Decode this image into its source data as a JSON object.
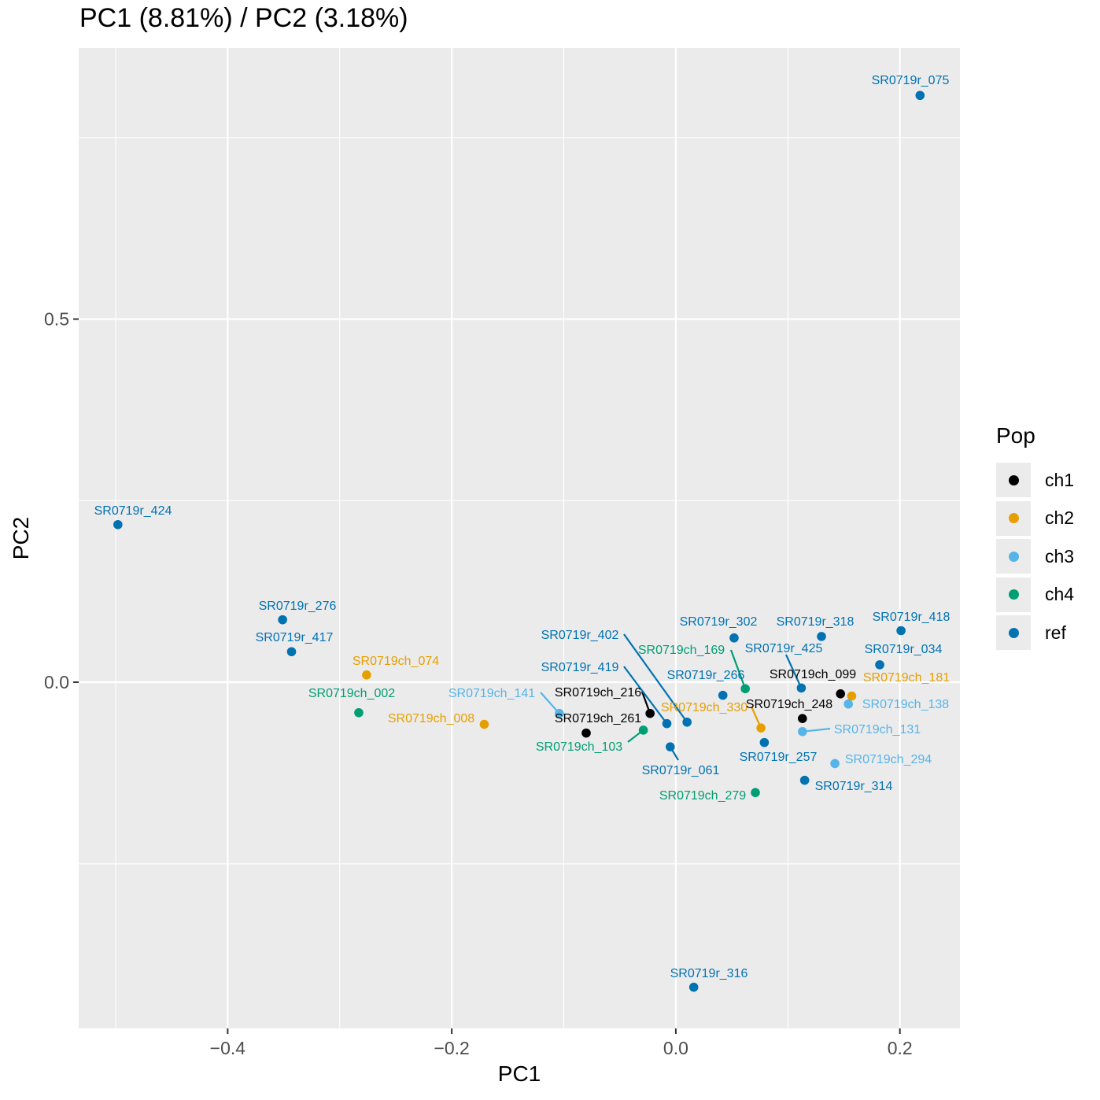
{
  "chart_data": {
    "type": "scatter",
    "title": "PC1 (8.81%) / PC2 (3.18%)",
    "xlabel": "PC1",
    "ylabel": "PC2",
    "xlim": [
      -0.533,
      0.2536
    ],
    "ylim": [
      -0.4767,
      0.8733
    ],
    "xticks": [
      -0.4,
      -0.2,
      0.0,
      0.2
    ],
    "xtick_labels": [
      "−0.4",
      "−0.2",
      "0.0",
      "0.2"
    ],
    "yticks": [
      0.0,
      0.5
    ],
    "ytick_labels": [
      "0.0",
      "0.5"
    ],
    "grid": true,
    "legend": {
      "title": "Pop",
      "position": "right",
      "entries": [
        {
          "name": "ch1",
          "color": "#000000"
        },
        {
          "name": "ch2",
          "color": "#E69F00"
        },
        {
          "name": "ch3",
          "color": "#56B4E9"
        },
        {
          "name": "ch4",
          "color": "#009E73"
        },
        {
          "name": "ref",
          "color": "#0072B2"
        }
      ]
    },
    "points": [
      {
        "label": "SR0719r_075",
        "pop": "ref",
        "x": 0.218,
        "y": 0.808
      },
      {
        "label": "SR0719r_424",
        "pop": "ref",
        "x": -0.498,
        "y": 0.217
      },
      {
        "label": "SR0719r_276",
        "pop": "ref",
        "x": -0.351,
        "y": 0.086
      },
      {
        "label": "SR0719r_417",
        "pop": "ref",
        "x": -0.343,
        "y": 0.042
      },
      {
        "label": "SR0719ch_074",
        "pop": "ch2",
        "x": -0.276,
        "y": 0.01
      },
      {
        "label": "SR0719ch_002",
        "pop": "ch4",
        "x": -0.283,
        "y": -0.042
      },
      {
        "label": "SR0719ch_008",
        "pop": "ch2",
        "x": -0.171,
        "y": -0.058
      },
      {
        "label": "SR0719ch_141",
        "pop": "ch3",
        "x": -0.104,
        "y": -0.043
      },
      {
        "label": "SR0719ch_261",
        "pop": "ch1",
        "x": -0.08,
        "y": -0.07
      },
      {
        "label": "SR0719ch_216",
        "pop": "ch1",
        "x": -0.023,
        "y": -0.043
      },
      {
        "label": "SR0719ch_103",
        "pop": "ch4",
        "x": -0.029,
        "y": -0.066
      },
      {
        "label": "SR0719r_402",
        "pop": "ref",
        "x": 0.01,
        "y": -0.055
      },
      {
        "label": "SR0719r_419",
        "pop": "ref",
        "x": -0.008,
        "y": -0.057
      },
      {
        "label": "SR0719r_061",
        "pop": "ref",
        "x": -0.005,
        "y": -0.089
      },
      {
        "label": "SR0719r_302",
        "pop": "ref",
        "x": 0.052,
        "y": 0.061
      },
      {
        "label": "SR0719r_266",
        "pop": "ref",
        "x": 0.042,
        "y": -0.018
      },
      {
        "label": "SR0719ch_169",
        "pop": "ch4",
        "x": 0.062,
        "y": -0.009
      },
      {
        "label": "SR0719ch_330",
        "pop": "ch2",
        "x": 0.076,
        "y": -0.063
      },
      {
        "label": "SR0719r_257",
        "pop": "ref",
        "x": 0.079,
        "y": -0.083
      },
      {
        "label": "SR0719ch_279",
        "pop": "ch4",
        "x": 0.071,
        "y": -0.152
      },
      {
        "label": "SR0719r_318",
        "pop": "ref",
        "x": 0.13,
        "y": 0.063
      },
      {
        "label": "SR0719r_425",
        "pop": "ref",
        "x": 0.112,
        "y": -0.008
      },
      {
        "label": "SR0719ch_248",
        "pop": "ch1",
        "x": 0.113,
        "y": -0.05
      },
      {
        "label": "SR0719ch_131",
        "pop": "ch3",
        "x": 0.113,
        "y": -0.068
      },
      {
        "label": "SR0719ch_099",
        "pop": "ch1",
        "x": 0.147,
        "y": -0.016
      },
      {
        "label": "SR0719ch_181",
        "pop": "ch2",
        "x": 0.157,
        "y": -0.019
      },
      {
        "label": "SR0719ch_138",
        "pop": "ch3",
        "x": 0.154,
        "y": -0.03
      },
      {
        "label": "SR0719ch_294",
        "pop": "ch3",
        "x": 0.142,
        "y": -0.112
      },
      {
        "label": "SR0719r_314",
        "pop": "ref",
        "x": 0.115,
        "y": -0.135
      },
      {
        "label": "SR0719r_418",
        "pop": "ref",
        "x": 0.201,
        "y": 0.071
      },
      {
        "label": "SR0719r_034",
        "pop": "ref",
        "x": 0.182,
        "y": 0.024
      },
      {
        "label": "SR0719r_316",
        "pop": "ref",
        "x": 0.016,
        "y": -0.42
      }
    ]
  }
}
